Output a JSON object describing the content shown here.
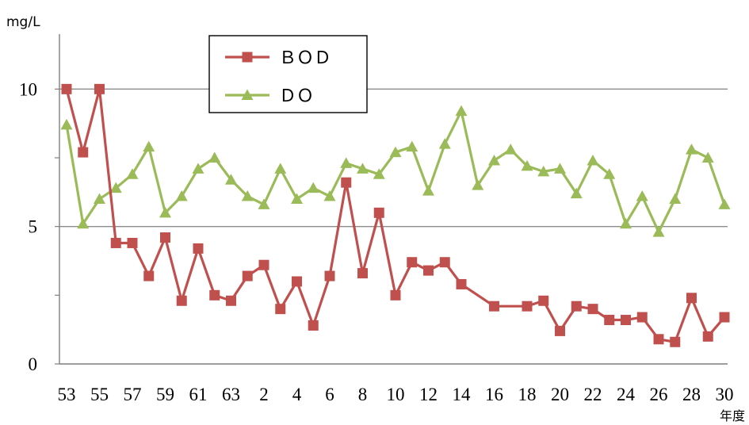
{
  "chart_data": {
    "type": "line",
    "y_unit_label": "mg/L",
    "xlabel": "年度",
    "ylim": [
      0,
      12
    ],
    "y_ticks": [
      0,
      5,
      10
    ],
    "gridlines": [
      5,
      10
    ],
    "legend_position": "top-center",
    "x": [
      "53",
      "54",
      "55",
      "56",
      "57",
      "58",
      "59",
      "60",
      "61",
      "62",
      "63",
      "1",
      "2",
      "3",
      "4",
      "5",
      "6",
      "7",
      "8",
      "9",
      "10",
      "11",
      "12",
      "13",
      "14",
      "15",
      "16",
      "17",
      "18",
      "19",
      "20",
      "21",
      "22",
      "23",
      "24",
      "25",
      "26",
      "27",
      "28",
      "29",
      "30"
    ],
    "x_tick_labels": [
      "53",
      "55",
      "57",
      "59",
      "61",
      "63",
      "2",
      "4",
      "6",
      "8",
      "10",
      "12",
      "14",
      "16",
      "18",
      "20",
      "22",
      "24",
      "26",
      "28",
      "30"
    ],
    "series": [
      {
        "name": "ＢＯＤ",
        "marker": "square",
        "color": "#C0504D",
        "values": [
          10,
          7.7,
          10,
          4.4,
          4.4,
          3.2,
          4.6,
          2.3,
          4.2,
          2.5,
          2.3,
          3.2,
          3.6,
          2.0,
          3.0,
          1.4,
          3.2,
          6.6,
          3.3,
          5.5,
          2.5,
          3.7,
          3.4,
          3.7,
          2.9,
          null,
          2.1,
          null,
          2.1,
          2.3,
          1.2,
          2.1,
          2.0,
          1.6,
          1.6,
          1.7,
          0.9,
          0.8,
          2.4,
          1.0,
          1.7
        ]
      },
      {
        "name": "ＤＯ",
        "marker": "triangle",
        "color": "#9BBB59",
        "values": [
          8.7,
          5.1,
          6.0,
          6.4,
          6.9,
          7.9,
          5.5,
          6.1,
          7.1,
          7.5,
          6.7,
          6.1,
          5.8,
          7.1,
          6.0,
          6.4,
          6.1,
          7.3,
          7.1,
          6.9,
          7.7,
          7.9,
          6.3,
          8.0,
          9.2,
          6.5,
          7.4,
          7.8,
          7.2,
          7.0,
          7.1,
          6.2,
          7.4,
          6.9,
          5.1,
          6.1,
          4.8,
          6.0,
          7.8,
          7.5,
          5.8
        ]
      }
    ]
  }
}
